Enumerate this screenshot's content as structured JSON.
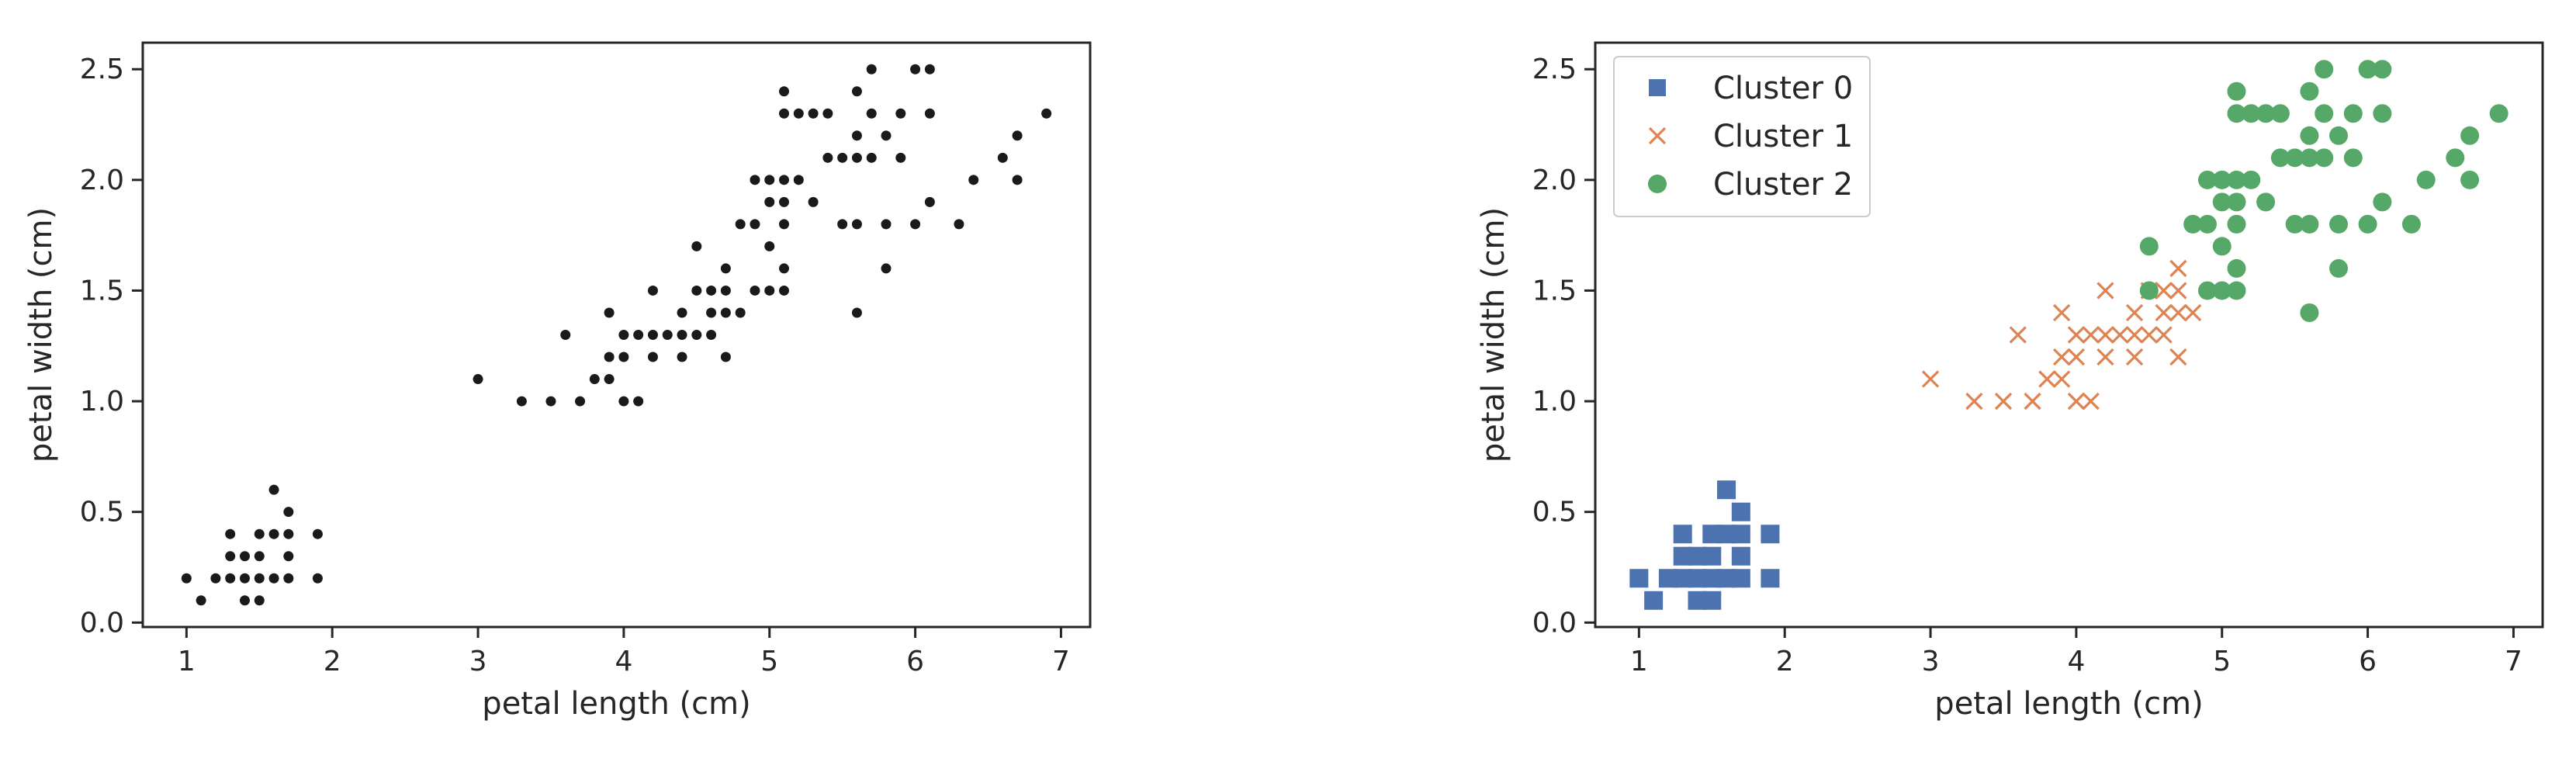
{
  "colors": {
    "point": "#1a1a1a",
    "cluster0": "#4c72b0",
    "cluster1": "#dd8452",
    "cluster2": "#55a868",
    "axis": "#262626"
  },
  "chart_data": [
    {
      "type": "scatter",
      "title": "",
      "xlabel": "petal length (cm)",
      "ylabel": "petal width (cm)",
      "xlim": [
        0.7,
        7.2
      ],
      "ylim": [
        -0.02,
        2.62
      ],
      "xticks": [
        "1",
        "2",
        "3",
        "4",
        "5",
        "6",
        "7"
      ],
      "yticks": [
        "0.0",
        "0.5",
        "1.0",
        "1.5",
        "2.0",
        "2.5"
      ],
      "grid": false,
      "legend": null,
      "series": [
        {
          "marker": "dot",
          "points": [
            [
              1.0,
              0.2
            ],
            [
              1.1,
              0.1
            ],
            [
              1.2,
              0.2
            ],
            [
              1.3,
              0.2
            ],
            [
              1.3,
              0.3
            ],
            [
              1.3,
              0.4
            ],
            [
              1.4,
              0.1
            ],
            [
              1.4,
              0.2
            ],
            [
              1.4,
              0.3
            ],
            [
              1.5,
              0.1
            ],
            [
              1.5,
              0.2
            ],
            [
              1.5,
              0.3
            ],
            [
              1.5,
              0.4
            ],
            [
              1.6,
              0.2
            ],
            [
              1.6,
              0.4
            ],
            [
              1.6,
              0.6
            ],
            [
              1.7,
              0.2
            ],
            [
              1.7,
              0.3
            ],
            [
              1.7,
              0.4
            ],
            [
              1.7,
              0.5
            ],
            [
              1.9,
              0.2
            ],
            [
              1.9,
              0.4
            ],
            [
              3.0,
              1.1
            ],
            [
              3.3,
              1.0
            ],
            [
              3.5,
              1.0
            ],
            [
              3.6,
              1.3
            ],
            [
              3.7,
              1.0
            ],
            [
              3.8,
              1.1
            ],
            [
              3.9,
              1.1
            ],
            [
              3.9,
              1.2
            ],
            [
              3.9,
              1.4
            ],
            [
              4.0,
              1.0
            ],
            [
              4.0,
              1.2
            ],
            [
              4.0,
              1.3
            ],
            [
              4.1,
              1.0
            ],
            [
              4.1,
              1.3
            ],
            [
              4.2,
              1.2
            ],
            [
              4.2,
              1.3
            ],
            [
              4.2,
              1.5
            ],
            [
              4.3,
              1.3
            ],
            [
              4.4,
              1.2
            ],
            [
              4.4,
              1.3
            ],
            [
              4.4,
              1.4
            ],
            [
              4.5,
              1.3
            ],
            [
              4.5,
              1.5
            ],
            [
              4.5,
              1.7
            ],
            [
              4.6,
              1.3
            ],
            [
              4.6,
              1.4
            ],
            [
              4.6,
              1.5
            ],
            [
              4.7,
              1.2
            ],
            [
              4.7,
              1.4
            ],
            [
              4.7,
              1.5
            ],
            [
              4.7,
              1.6
            ],
            [
              4.8,
              1.4
            ],
            [
              4.8,
              1.8
            ],
            [
              4.9,
              1.5
            ],
            [
              4.9,
              1.8
            ],
            [
              4.9,
              2.0
            ],
            [
              5.0,
              1.5
            ],
            [
              5.0,
              1.7
            ],
            [
              5.0,
              1.9
            ],
            [
              5.0,
              2.0
            ],
            [
              5.1,
              1.5
            ],
            [
              5.1,
              1.6
            ],
            [
              5.1,
              1.8
            ],
            [
              5.1,
              1.9
            ],
            [
              5.1,
              2.0
            ],
            [
              5.1,
              2.3
            ],
            [
              5.1,
              2.4
            ],
            [
              5.2,
              2.0
            ],
            [
              5.2,
              2.3
            ],
            [
              5.3,
              1.9
            ],
            [
              5.3,
              2.3
            ],
            [
              5.4,
              2.1
            ],
            [
              5.4,
              2.3
            ],
            [
              5.5,
              1.8
            ],
            [
              5.5,
              2.1
            ],
            [
              5.6,
              1.4
            ],
            [
              5.6,
              1.8
            ],
            [
              5.6,
              2.1
            ],
            [
              5.6,
              2.2
            ],
            [
              5.6,
              2.4
            ],
            [
              5.7,
              2.1
            ],
            [
              5.7,
              2.3
            ],
            [
              5.7,
              2.5
            ],
            [
              5.8,
              1.6
            ],
            [
              5.8,
              1.8
            ],
            [
              5.8,
              2.2
            ],
            [
              5.9,
              2.1
            ],
            [
              5.9,
              2.3
            ],
            [
              6.0,
              1.8
            ],
            [
              6.0,
              2.5
            ],
            [
              6.1,
              1.9
            ],
            [
              6.1,
              2.3
            ],
            [
              6.1,
              2.5
            ],
            [
              6.3,
              1.8
            ],
            [
              6.4,
              2.0
            ],
            [
              6.6,
              2.1
            ],
            [
              6.7,
              2.0
            ],
            [
              6.7,
              2.2
            ],
            [
              6.9,
              2.3
            ]
          ]
        }
      ]
    },
    {
      "type": "scatter",
      "title": "",
      "xlabel": "petal length (cm)",
      "ylabel": "petal width (cm)",
      "xlim": [
        0.7,
        7.2
      ],
      "ylim": [
        -0.02,
        2.62
      ],
      "xticks": [
        "1",
        "2",
        "3",
        "4",
        "5",
        "6",
        "7"
      ],
      "yticks": [
        "0.0",
        "0.5",
        "1.0",
        "1.5",
        "2.0",
        "2.5"
      ],
      "grid": false,
      "legend": "top-left",
      "series": [
        {
          "name": "Cluster 0",
          "marker": "square",
          "color": "#4c72b0",
          "points": [
            [
              1.0,
              0.2
            ],
            [
              1.1,
              0.1
            ],
            [
              1.2,
              0.2
            ],
            [
              1.3,
              0.2
            ],
            [
              1.3,
              0.3
            ],
            [
              1.3,
              0.4
            ],
            [
              1.4,
              0.1
            ],
            [
              1.4,
              0.2
            ],
            [
              1.4,
              0.3
            ],
            [
              1.5,
              0.1
            ],
            [
              1.5,
              0.2
            ],
            [
              1.5,
              0.3
            ],
            [
              1.5,
              0.4
            ],
            [
              1.6,
              0.2
            ],
            [
              1.6,
              0.4
            ],
            [
              1.6,
              0.6
            ],
            [
              1.7,
              0.2
            ],
            [
              1.7,
              0.3
            ],
            [
              1.7,
              0.4
            ],
            [
              1.7,
              0.5
            ],
            [
              1.9,
              0.2
            ],
            [
              1.9,
              0.4
            ]
          ]
        },
        {
          "name": "Cluster 1",
          "marker": "x",
          "color": "#dd8452",
          "points": [
            [
              3.0,
              1.1
            ],
            [
              3.3,
              1.0
            ],
            [
              3.5,
              1.0
            ],
            [
              3.6,
              1.3
            ],
            [
              3.7,
              1.0
            ],
            [
              3.8,
              1.1
            ],
            [
              3.9,
              1.1
            ],
            [
              3.9,
              1.2
            ],
            [
              3.9,
              1.4
            ],
            [
              4.0,
              1.0
            ],
            [
              4.0,
              1.2
            ],
            [
              4.0,
              1.3
            ],
            [
              4.1,
              1.0
            ],
            [
              4.1,
              1.3
            ],
            [
              4.2,
              1.2
            ],
            [
              4.2,
              1.3
            ],
            [
              4.2,
              1.5
            ],
            [
              4.3,
              1.3
            ],
            [
              4.4,
              1.2
            ],
            [
              4.4,
              1.3
            ],
            [
              4.4,
              1.4
            ],
            [
              4.5,
              1.3
            ],
            [
              4.5,
              1.5
            ],
            [
              4.6,
              1.3
            ],
            [
              4.6,
              1.4
            ],
            [
              4.6,
              1.5
            ],
            [
              4.7,
              1.2
            ],
            [
              4.7,
              1.4
            ],
            [
              4.7,
              1.5
            ],
            [
              4.7,
              1.6
            ],
            [
              4.8,
              1.4
            ]
          ]
        },
        {
          "name": "Cluster 2",
          "marker": "circle",
          "color": "#55a868",
          "points": [
            [
              4.5,
              1.7
            ],
            [
              4.5,
              1.5
            ],
            [
              4.8,
              1.8
            ],
            [
              4.9,
              1.5
            ],
            [
              4.9,
              1.8
            ],
            [
              4.9,
              2.0
            ],
            [
              5.0,
              1.5
            ],
            [
              5.0,
              1.7
            ],
            [
              5.0,
              1.9
            ],
            [
              5.0,
              2.0
            ],
            [
              5.1,
              1.5
            ],
            [
              5.1,
              1.6
            ],
            [
              5.1,
              1.8
            ],
            [
              5.1,
              1.9
            ],
            [
              5.1,
              2.0
            ],
            [
              5.1,
              2.3
            ],
            [
              5.1,
              2.4
            ],
            [
              5.2,
              2.0
            ],
            [
              5.2,
              2.3
            ],
            [
              5.3,
              1.9
            ],
            [
              5.3,
              2.3
            ],
            [
              5.4,
              2.1
            ],
            [
              5.4,
              2.3
            ],
            [
              5.5,
              1.8
            ],
            [
              5.5,
              2.1
            ],
            [
              5.6,
              1.4
            ],
            [
              5.6,
              1.8
            ],
            [
              5.6,
              2.1
            ],
            [
              5.6,
              2.2
            ],
            [
              5.6,
              2.4
            ],
            [
              5.7,
              2.1
            ],
            [
              5.7,
              2.3
            ],
            [
              5.7,
              2.5
            ],
            [
              5.8,
              1.6
            ],
            [
              5.8,
              1.8
            ],
            [
              5.8,
              2.2
            ],
            [
              5.9,
              2.1
            ],
            [
              5.9,
              2.3
            ],
            [
              6.0,
              1.8
            ],
            [
              6.0,
              2.5
            ],
            [
              6.1,
              1.9
            ],
            [
              6.1,
              2.3
            ],
            [
              6.1,
              2.5
            ],
            [
              6.3,
              1.8
            ],
            [
              6.4,
              2.0
            ],
            [
              6.6,
              2.1
            ],
            [
              6.7,
              2.0
            ],
            [
              6.7,
              2.2
            ],
            [
              6.9,
              2.3
            ]
          ]
        }
      ]
    }
  ]
}
